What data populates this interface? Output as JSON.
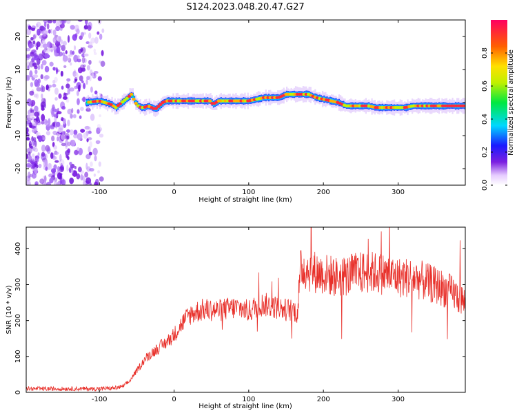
{
  "title": "S124.2023.048.20.47.G27",
  "chart_data": [
    {
      "type": "heatmap",
      "xlabel": "Height of straight line (km)",
      "ylabel": "Frequency (Hz)",
      "xlim": [
        -198,
        390
      ],
      "ylim": [
        -25,
        25
      ],
      "xticks": [
        -100,
        0,
        100,
        200,
        300
      ],
      "xtick_labels": [
        "-100",
        "0",
        "100",
        "200",
        "300"
      ],
      "yticks": [
        -20,
        -10,
        0,
        10,
        20
      ],
      "ytick_labels": [
        "-20",
        "-10",
        "0",
        "10",
        "20"
      ],
      "colorbar": {
        "label": "Normalized spectral amplitude",
        "range": [
          0,
          1
        ],
        "ticks": [
          0.0,
          0.2,
          0.4,
          0.6,
          0.8
        ],
        "tick_labels": [
          "0.0",
          "0.2",
          "0.4",
          "0.6",
          "0.8"
        ]
      },
      "ridge": {
        "x": [
          -118,
          -100,
          -85,
          -78,
          -70,
          -62,
          -57,
          -52,
          -48,
          -44,
          -40,
          -35,
          -30,
          -25,
          -20,
          -15,
          -10,
          0,
          10,
          20,
          30,
          40,
          48,
          52,
          60,
          70,
          80,
          90,
          100,
          110,
          120,
          130,
          140,
          150,
          160,
          170,
          180,
          190,
          200,
          210,
          220,
          230,
          240,
          250,
          260,
          270,
          280,
          290,
          300,
          310,
          320,
          330,
          340,
          350,
          360,
          370,
          380,
          390
        ],
        "freq": [
          0,
          0.5,
          -0.5,
          -1.5,
          0,
          1.5,
          2.5,
          0,
          -1,
          -1.5,
          -1.5,
          -1,
          -1.5,
          -2,
          -1,
          0,
          0.5,
          0.5,
          0.5,
          0.5,
          0.5,
          0.5,
          0.5,
          -0.5,
          0.5,
          0.5,
          0.5,
          0.5,
          0.5,
          1,
          1.5,
          1.5,
          1.5,
          2.5,
          2.5,
          2.5,
          2.5,
          1.5,
          1,
          0.5,
          0,
          -1,
          -1,
          -1,
          -1,
          -1.5,
          -1.5,
          -1.5,
          -1.5,
          -1.5,
          -1,
          -1,
          -1,
          -1,
          -1,
          -1,
          -1,
          -1
        ]
      },
      "noise_region_x": [
        -198,
        -95
      ]
    },
    {
      "type": "line",
      "xlabel": "Height of straight line (km)",
      "ylabel": "SNR (10 * v/v)",
      "xlim": [
        -198,
        390
      ],
      "ylim": [
        0,
        460
      ],
      "xticks": [
        -100,
        0,
        100,
        200,
        300
      ],
      "xtick_labels": [
        "-100",
        "0",
        "100",
        "200",
        "300"
      ],
      "yticks": [
        0,
        100,
        200,
        300,
        400
      ],
      "ytick_labels": [
        "0",
        "100",
        "200",
        "300",
        "400"
      ],
      "color": "#e8302a",
      "series": [
        {
          "x": [
            -198,
            -150,
            -100,
            -80,
            -70,
            -60,
            -50,
            -40,
            -30,
            -20,
            -10,
            0,
            10,
            20,
            30,
            40,
            50,
            60,
            70,
            80,
            90,
            100,
            110,
            120,
            130,
            140,
            150,
            160,
            165,
            170,
            180,
            200,
            220,
            240,
            260,
            280,
            300,
            320,
            340,
            360,
            375,
            390
          ],
          "y": [
            10,
            10,
            10,
            12,
            15,
            30,
            60,
            90,
            110,
            125,
            140,
            160,
            190,
            215,
            225,
            230,
            230,
            228,
            232,
            235,
            235,
            225,
            240,
            245,
            240,
            235,
            230,
            230,
            220,
            350,
            340,
            330,
            320,
            330,
            335,
            330,
            320,
            320,
            305,
            290,
            275,
            250
          ]
        }
      ]
    }
  ]
}
